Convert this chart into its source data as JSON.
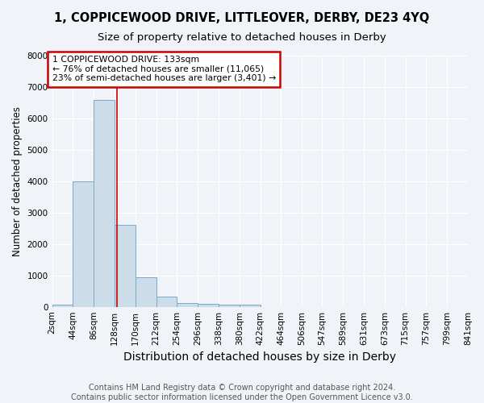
{
  "title": "1, COPPICEWOOD DRIVE, LITTLEOVER, DERBY, DE23 4YQ",
  "subtitle": "Size of property relative to detached houses in Derby",
  "xlabel": "Distribution of detached houses by size in Derby",
  "ylabel": "Number of detached properties",
  "bin_labels": [
    "2sqm",
    "44sqm",
    "86sqm",
    "128sqm",
    "170sqm",
    "212sqm",
    "254sqm",
    "296sqm",
    "338sqm",
    "380sqm",
    "422sqm",
    "464sqm",
    "506sqm",
    "547sqm",
    "589sqm",
    "631sqm",
    "673sqm",
    "715sqm",
    "757sqm",
    "799sqm",
    "841sqm"
  ],
  "bin_edges": [
    2,
    44,
    86,
    128,
    170,
    212,
    254,
    296,
    338,
    380,
    422,
    464,
    506,
    547,
    589,
    631,
    673,
    715,
    757,
    799,
    841
  ],
  "bar_heights": [
    75,
    4000,
    6600,
    2600,
    950,
    325,
    115,
    90,
    60,
    60,
    0,
    0,
    0,
    0,
    0,
    0,
    0,
    0,
    0,
    0
  ],
  "bar_color": "#ccdce8",
  "bar_edge_color": "#7aaac8",
  "ylim": [
    0,
    8000
  ],
  "property_size": 133,
  "vline_color": "#cc0000",
  "annotation_text": "1 COPPICEWOOD DRIVE: 133sqm\n← 76% of detached houses are smaller (11,065)\n23% of semi-detached houses are larger (3,401) →",
  "annotation_box_color": "#ffffff",
  "annotation_box_edge_color": "#cc0000",
  "footer_text": "Contains HM Land Registry data © Crown copyright and database right 2024.\nContains public sector information licensed under the Open Government Licence v3.0.",
  "background_color": "#f0f4f8",
  "grid_color": "#ffffff",
  "title_fontsize": 10.5,
  "subtitle_fontsize": 9.5,
  "xlabel_fontsize": 10,
  "ylabel_fontsize": 8.5,
  "tick_fontsize": 7.5,
  "footer_fontsize": 7
}
